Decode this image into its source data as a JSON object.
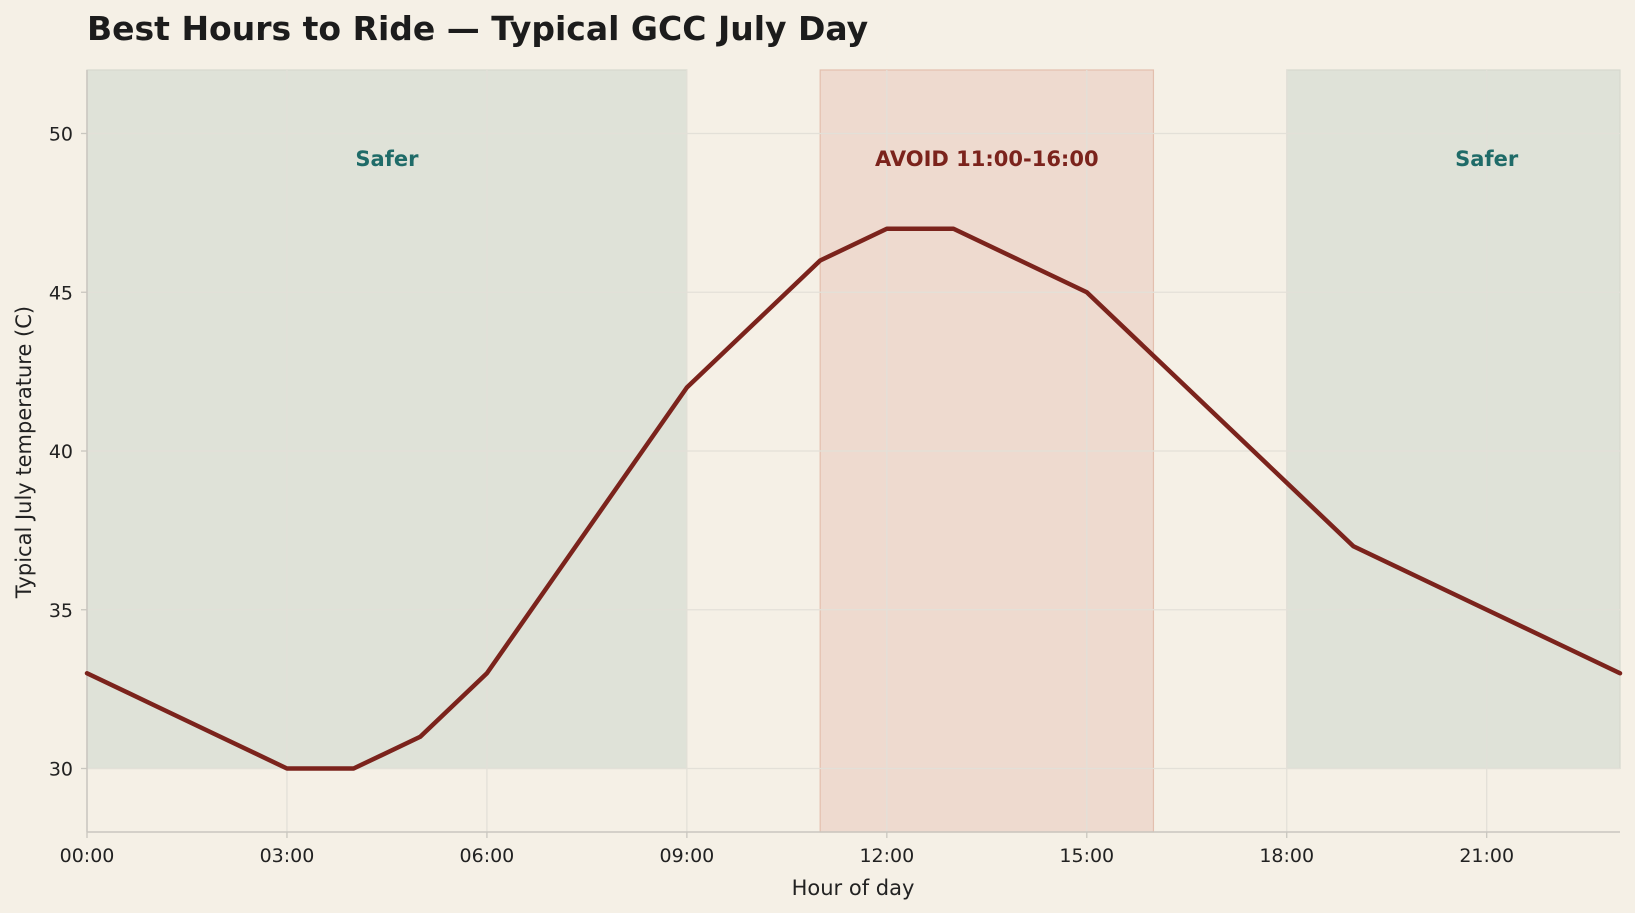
{
  "colors": {
    "background": "#f5f0e6",
    "line": "#7b231c",
    "safe_band": "#dfe2d8",
    "avoid_band": "#eedacf",
    "avoid_band_edge": "#e3bfae",
    "safe_text": "#1f6b68",
    "avoid_text": "#7b231c",
    "grid": "#e3e0d8",
    "axis": "#c9c6bf"
  },
  "chart_data": {
    "type": "line",
    "title": "Best Hours to Ride — Typical GCC July Day",
    "xlabel": "Hour of day",
    "ylabel": "Typical July temperature (C)",
    "xlim": [
      0,
      23
    ],
    "ylim": [
      28,
      52
    ],
    "x_ticks": [
      0,
      3,
      6,
      9,
      12,
      15,
      18,
      21
    ],
    "x_tick_labels": [
      "00:00",
      "03:00",
      "06:00",
      "09:00",
      "12:00",
      "15:00",
      "18:00",
      "21:00"
    ],
    "y_ticks": [
      30,
      35,
      40,
      45,
      50
    ],
    "y_tick_labels": [
      "30",
      "35",
      "40",
      "45",
      "50"
    ],
    "grid": true,
    "series": [
      {
        "x": [
          0,
          1,
          2,
          3,
          4,
          5,
          6,
          7,
          8,
          9,
          10,
          11,
          12,
          13,
          14,
          15,
          16,
          17,
          18,
          19,
          20,
          21,
          22,
          23
        ],
        "values": [
          33,
          32,
          31,
          30,
          30,
          31,
          33,
          36,
          39,
          42,
          44,
          46,
          47,
          47,
          46,
          45,
          43,
          41,
          39,
          37,
          36,
          35,
          34,
          33
        ]
      }
    ],
    "bands": [
      {
        "kind": "safe",
        "x_start": 0,
        "x_end": 9,
        "y_start": 30,
        "y_end": 52,
        "label": "Safer",
        "label_x": 4.5,
        "label_y": 49.2
      },
      {
        "kind": "avoid",
        "x_start": 11,
        "x_end": 16,
        "y_start": 28,
        "y_end": 52,
        "label": "AVOID 11:00-16:00",
        "label_x": 13.5,
        "label_y": 49.2
      },
      {
        "kind": "safe",
        "x_start": 18,
        "x_end": 23,
        "y_start": 30,
        "y_end": 52,
        "label": "Safer",
        "label_x": 21,
        "label_y": 49.2
      }
    ]
  }
}
